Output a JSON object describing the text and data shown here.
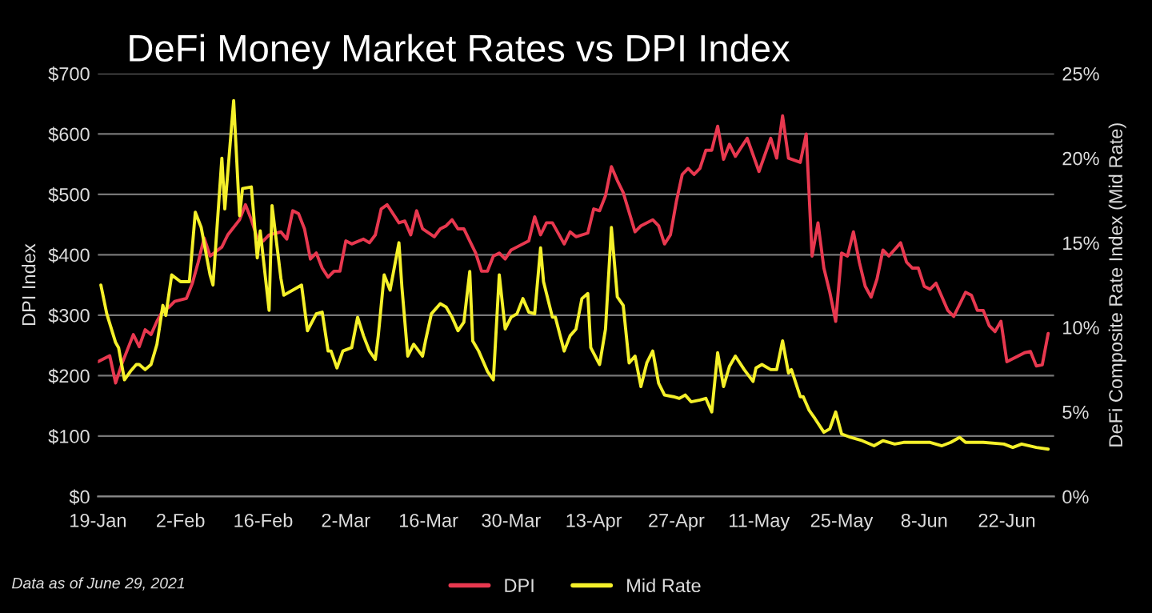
{
  "chart_data": {
    "type": "line",
    "title": "DeFi Money Market Rates vs DPI Index",
    "ylabel": "DPI Index",
    "y2label": "DeFi Composite Rate Index (Mid Rate)",
    "annotations": [
      "Data as of June 29, 2021"
    ],
    "xlim": [
      "2021-01-19",
      "2021-06-30"
    ],
    "ylim": [
      0,
      700
    ],
    "y2lim": [
      0,
      25
    ],
    "grid": "y",
    "legend": "bottom",
    "marker": "none",
    "line_style": "solid",
    "xticks": [
      {
        "value": "2021-01-19",
        "label": "19-Jan"
      },
      {
        "value": "2021-02-02",
        "label": "2-Feb"
      },
      {
        "value": "2021-02-16",
        "label": "16-Feb"
      },
      {
        "value": "2021-03-02",
        "label": "2-Mar"
      },
      {
        "value": "2021-03-16",
        "label": "16-Mar"
      },
      {
        "value": "2021-03-30",
        "label": "30-Mar"
      },
      {
        "value": "2021-04-13",
        "label": "13-Apr"
      },
      {
        "value": "2021-04-27",
        "label": "27-Apr"
      },
      {
        "value": "2021-05-11",
        "label": "11-May"
      },
      {
        "value": "2021-05-25",
        "label": "25-May"
      },
      {
        "value": "2021-06-08",
        "label": "8-Jun"
      },
      {
        "value": "2021-06-22",
        "label": "22-Jun"
      }
    ],
    "yticks": [
      {
        "value": 0,
        "label": "$0"
      },
      {
        "value": 100,
        "label": "$100"
      },
      {
        "value": 200,
        "label": "$200"
      },
      {
        "value": 300,
        "label": "$300"
      },
      {
        "value": 400,
        "label": "$400"
      },
      {
        "value": 500,
        "label": "$500"
      },
      {
        "value": 600,
        "label": "$600"
      },
      {
        "value": 700,
        "label": "$700"
      }
    ],
    "y2ticks": [
      {
        "value": 0,
        "label": "0%"
      },
      {
        "value": 5,
        "label": "5%"
      },
      {
        "value": 10,
        "label": "10%"
      },
      {
        "value": 15,
        "label": "15%"
      },
      {
        "value": 20,
        "label": "20%"
      },
      {
        "value": 25,
        "label": "25%"
      }
    ],
    "series": [
      {
        "name": "DPI",
        "color": "#e8384f",
        "x": [
          "2021-01-19",
          "2021-01-21",
          "2021-01-22",
          "2021-01-23",
          "2021-01-25",
          "2021-01-26",
          "2021-01-27",
          "2021-01-28",
          "2021-01-29",
          "2021-01-30",
          "2021-01-31",
          "2021-02-01",
          "2021-02-03",
          "2021-02-04",
          "2021-02-05",
          "2021-02-06",
          "2021-02-07",
          "2021-02-09",
          "2021-02-10",
          "2021-02-12",
          "2021-02-13",
          "2021-02-14",
          "2021-02-15",
          "2021-02-16",
          "2021-02-17",
          "2021-02-19",
          "2021-02-20",
          "2021-02-21",
          "2021-02-22",
          "2021-02-23",
          "2021-02-24",
          "2021-02-25",
          "2021-02-26",
          "2021-02-27",
          "2021-02-28",
          "2021-03-01",
          "2021-03-02",
          "2021-03-03",
          "2021-03-05",
          "2021-03-06",
          "2021-03-07",
          "2021-03-08",
          "2021-03-09",
          "2021-03-11",
          "2021-03-12",
          "2021-03-13",
          "2021-03-14",
          "2021-03-15",
          "2021-03-17",
          "2021-03-18",
          "2021-03-19",
          "2021-03-20",
          "2021-03-21",
          "2021-03-22",
          "2021-03-23",
          "2021-03-24",
          "2021-03-25",
          "2021-03-26",
          "2021-03-27",
          "2021-03-28",
          "2021-03-29",
          "2021-03-30",
          "2021-03-31",
          "2021-04-02",
          "2021-04-03",
          "2021-04-04",
          "2021-04-05",
          "2021-04-06",
          "2021-04-08",
          "2021-04-09",
          "2021-04-10",
          "2021-04-12",
          "2021-04-13",
          "2021-04-14",
          "2021-04-15",
          "2021-04-16",
          "2021-04-17",
          "2021-04-18",
          "2021-04-20",
          "2021-04-21",
          "2021-04-23",
          "2021-04-24",
          "2021-04-25",
          "2021-04-26",
          "2021-04-27",
          "2021-04-28",
          "2021-04-29",
          "2021-04-30",
          "2021-05-01",
          "2021-05-02",
          "2021-05-03",
          "2021-05-04",
          "2021-05-05",
          "2021-05-06",
          "2021-05-07",
          "2021-05-09",
          "2021-05-11",
          "2021-05-13",
          "2021-05-14",
          "2021-05-15",
          "2021-05-16",
          "2021-05-18",
          "2021-05-19",
          "2021-05-20",
          "2021-05-21",
          "2021-05-22",
          "2021-05-23",
          "2021-05-24",
          "2021-05-25",
          "2021-05-26",
          "2021-05-27",
          "2021-05-28",
          "2021-05-29",
          "2021-05-30",
          "2021-05-31",
          "2021-06-01",
          "2021-06-02",
          "2021-06-04",
          "2021-06-05",
          "2021-06-06",
          "2021-06-07",
          "2021-06-08",
          "2021-06-09",
          "2021-06-10",
          "2021-06-12",
          "2021-06-13",
          "2021-06-15",
          "2021-06-16",
          "2021-06-17",
          "2021-06-18",
          "2021-06-19",
          "2021-06-20",
          "2021-06-21",
          "2021-06-22",
          "2021-06-23",
          "2021-06-25",
          "2021-06-26",
          "2021-06-27",
          "2021-06-28",
          "2021-06-29"
        ],
        "values": [
          223,
          233,
          188,
          218,
          268,
          248,
          276,
          268,
          290,
          308,
          313,
          323,
          328,
          353,
          388,
          428,
          398,
          413,
          433,
          458,
          483,
          458,
          428,
          423,
          433,
          438,
          426,
          473,
          468,
          443,
          393,
          403,
          378,
          363,
          373,
          373,
          423,
          418,
          426,
          420,
          433,
          476,
          483,
          453,
          456,
          433,
          473,
          443,
          430,
          443,
          448,
          458,
          443,
          443,
          423,
          403,
          373,
          373,
          398,
          403,
          393,
          408,
          413,
          423,
          463,
          433,
          453,
          453,
          418,
          438,
          430,
          436,
          476,
          473,
          498,
          546,
          523,
          503,
          438,
          448,
          458,
          448,
          418,
          433,
          488,
          533,
          543,
          533,
          543,
          573,
          573,
          613,
          558,
          583,
          563,
          593,
          538,
          593,
          560,
          630,
          560,
          553,
          600,
          398,
          453,
          378,
          338,
          290,
          403,
          398,
          438,
          388,
          348,
          330,
          360,
          408,
          398,
          420,
          388,
          378,
          378,
          348,
          343,
          353,
          308,
          298,
          338,
          333,
          308,
          308,
          283,
          273,
          290,
          223,
          228,
          238,
          240,
          216,
          218,
          270
        ]
      },
      {
        "name": "Mid Rate",
        "color": "#f5f02a",
        "axis": "y2",
        "x": [
          "2021-01-19T12:00",
          "2021-01-20T12:00",
          "2021-01-22",
          "2021-01-22T12:00",
          "2021-01-23T12:00",
          "2021-01-24T12:00",
          "2021-01-25T12:00",
          "2021-01-26",
          "2021-01-27",
          "2021-01-28",
          "2021-01-29",
          "2021-01-30",
          "2021-01-30T12:00",
          "2021-01-31T12:00",
          "2021-02-02",
          "2021-02-03T12:00",
          "2021-02-04T12:00",
          "2021-02-05T12:00",
          "2021-02-07",
          "2021-02-07T12:00",
          "2021-02-09",
          "2021-02-09T12:00",
          "2021-02-11",
          "2021-02-12",
          "2021-02-12T12:00",
          "2021-02-14",
          "2021-02-15",
          "2021-02-15T12:00",
          "2021-02-17",
          "2021-02-17T12:00",
          "2021-02-19",
          "2021-02-19T12:00",
          "2021-02-22T12:00",
          "2021-02-23T12:00",
          "2021-02-25",
          "2021-02-26",
          "2021-02-27",
          "2021-02-27T12:00",
          "2021-02-28T12:00",
          "2021-03-01T12:00",
          "2021-03-03",
          "2021-03-04",
          "2021-03-05",
          "2021-03-06",
          "2021-03-07",
          "2021-03-07T12:00",
          "2021-03-08T12:00",
          "2021-03-09T12:00",
          "2021-03-11",
          "2021-03-11T12:00",
          "2021-03-12T12:00",
          "2021-03-13T12:00",
          "2021-03-15",
          "2021-03-15T12:00",
          "2021-03-16T12:00",
          "2021-03-18",
          "2021-03-19",
          "2021-03-20",
          "2021-03-21",
          "2021-03-22",
          "2021-03-23",
          "2021-03-23T12:00",
          "2021-03-24T12:00",
          "2021-03-26",
          "2021-03-27",
          "2021-03-28",
          "2021-03-29",
          "2021-03-30",
          "2021-03-31",
          "2021-04-01",
          "2021-04-02",
          "2021-04-03",
          "2021-04-04",
          "2021-04-04T12:00",
          "2021-04-06",
          "2021-04-06T12:00",
          "2021-04-08",
          "2021-04-09",
          "2021-04-10",
          "2021-04-11",
          "2021-04-12",
          "2021-04-12T12:00",
          "2021-04-14",
          "2021-04-15",
          "2021-04-16",
          "2021-04-17",
          "2021-04-18",
          "2021-04-19",
          "2021-04-20",
          "2021-04-21",
          "2021-04-22",
          "2021-04-23",
          "2021-04-24",
          "2021-04-25",
          "2021-04-26T12:00",
          "2021-04-27T12:00",
          "2021-04-28T12:00",
          "2021-04-29T12:00",
          "2021-05-01",
          "2021-05-02",
          "2021-05-03",
          "2021-05-04",
          "2021-05-05",
          "2021-05-06",
          "2021-05-07",
          "2021-05-08T12:00",
          "2021-05-10",
          "2021-05-10T12:00",
          "2021-05-11T12:00",
          "2021-05-13",
          "2021-05-14",
          "2021-05-15",
          "2021-05-16",
          "2021-05-16T12:00",
          "2021-05-18",
          "2021-05-18T12:00",
          "2021-05-19T12:00",
          "2021-05-20T12:00",
          "2021-05-22",
          "2021-05-23",
          "2021-05-24",
          "2021-05-25",
          "2021-05-26T12:00",
          "2021-05-28T12:00",
          "2021-05-30T12:00",
          "2021-06-01",
          "2021-06-03",
          "2021-06-04T12:00",
          "2021-06-07",
          "2021-06-09",
          "2021-06-11",
          "2021-06-12T12:00",
          "2021-06-14",
          "2021-06-15",
          "2021-06-18",
          "2021-06-21T12:00",
          "2021-06-23",
          "2021-06-24T12:00",
          "2021-06-27",
          "2021-06-29"
        ],
        "values": [
          12.5,
          10.8,
          9.1,
          8.8,
          6.9,
          7.4,
          7.8,
          7.8,
          7.5,
          7.8,
          9.0,
          11.3,
          10.7,
          13.1,
          12.7,
          12.7,
          16.8,
          15.9,
          13.1,
          12.5,
          20.0,
          17.0,
          23.4,
          16.6,
          18.2,
          18.3,
          14.1,
          15.7,
          11.0,
          17.2,
          12.9,
          11.9,
          12.5,
          9.8,
          10.8,
          10.9,
          8.6,
          8.6,
          7.6,
          8.6,
          8.8,
          10.6,
          9.5,
          8.6,
          8.1,
          9.5,
          13.1,
          12.2,
          15.0,
          12.4,
          8.3,
          9.0,
          8.3,
          9.2,
          10.8,
          11.4,
          11.2,
          10.6,
          9.8,
          10.3,
          13.3,
          9.2,
          8.6,
          7.4,
          6.9,
          13.1,
          9.9,
          10.6,
          10.8,
          11.7,
          10.9,
          10.8,
          14.7,
          12.7,
          10.6,
          10.6,
          8.6,
          9.5,
          9.9,
          11.7,
          12.0,
          8.8,
          7.8,
          9.9,
          15.9,
          11.8,
          11.3,
          7.9,
          8.3,
          6.5,
          7.9,
          8.6,
          6.7,
          6.0,
          5.9,
          5.8,
          6.0,
          5.6,
          5.7,
          5.8,
          5.0,
          8.5,
          6.5,
          7.7,
          8.3,
          7.5,
          6.8,
          7.6,
          7.8,
          7.5,
          7.5,
          9.2,
          7.3,
          7.5,
          5.9,
          5.9,
          5.1,
          4.6,
          3.8,
          4.0,
          5.0,
          3.7,
          3.5,
          3.3,
          3.0,
          3.3,
          3.1,
          3.2,
          3.2,
          3.2,
          3.0,
          3.2,
          3.5,
          3.2,
          3.2,
          3.1,
          2.9,
          3.1,
          2.9,
          2.8
        ]
      }
    ]
  }
}
